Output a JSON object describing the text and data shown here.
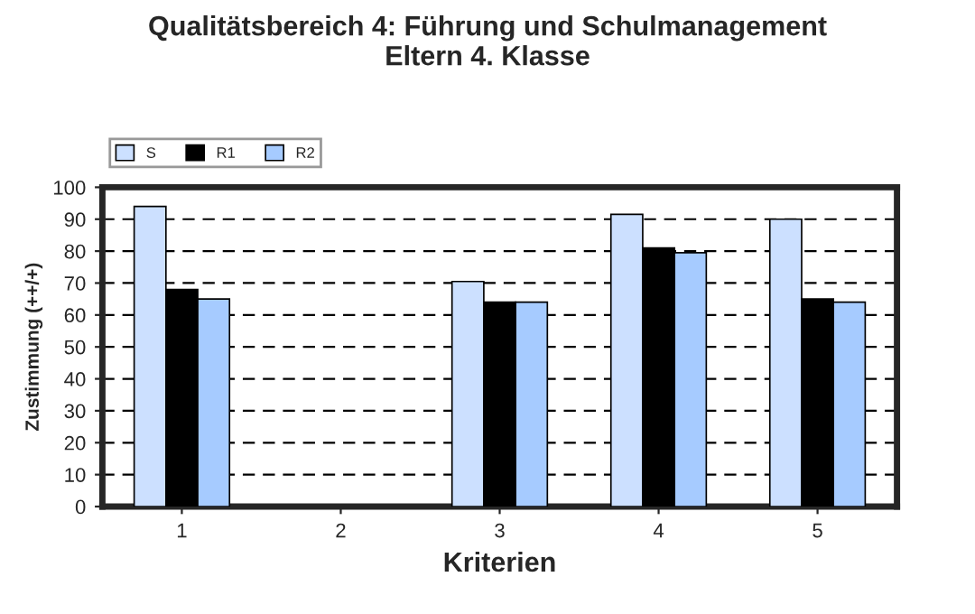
{
  "chart_data": {
    "type": "bar",
    "title": "Qualitätsbereich 4: Führung und Schulmanagement\nEltern 4. Klasse",
    "xlabel": "Kriterien",
    "ylabel": "Zustimmung (++/+)",
    "categories": [
      "1",
      "2",
      "3",
      "4",
      "5"
    ],
    "series": [
      {
        "name": "S",
        "color": "#cce0ff",
        "values": [
          94,
          null,
          70.5,
          91.5,
          90
        ]
      },
      {
        "name": "R1",
        "color": "#000000",
        "values": [
          68,
          null,
          64,
          81,
          65
        ]
      },
      {
        "name": "R2",
        "color": "#a6cbff",
        "values": [
          65,
          null,
          64,
          79.5,
          64
        ]
      }
    ],
    "ylim": [
      0,
      100
    ],
    "yticks": [
      0,
      10,
      20,
      30,
      40,
      50,
      60,
      70,
      80,
      90,
      100
    ],
    "grid": "y",
    "legend": "top left"
  }
}
